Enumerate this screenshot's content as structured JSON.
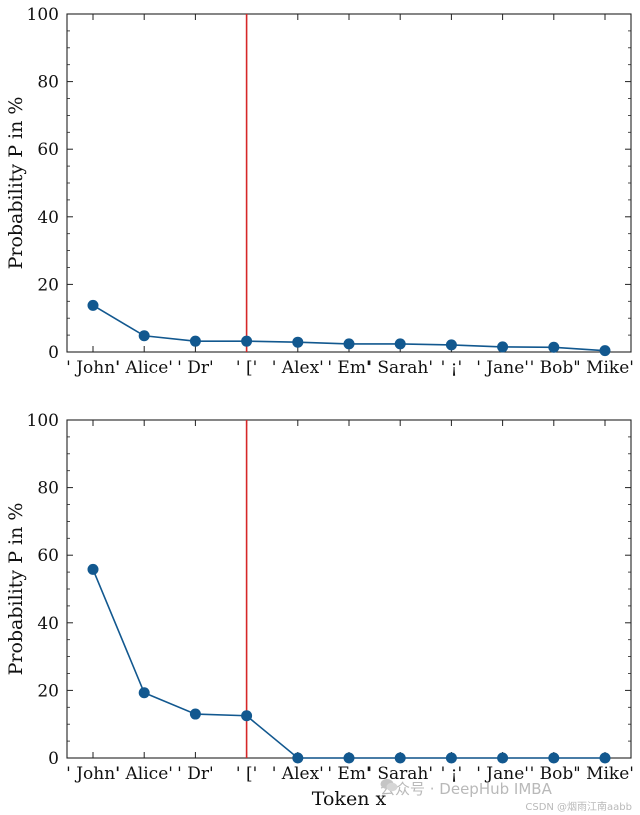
{
  "chart_data": [
    {
      "type": "line",
      "categories": [
        "' John'",
        "' Alice'",
        "' Dr'",
        "' ['",
        "' Alex'",
        "' Em'",
        "' Sarah'",
        "' ¡'",
        "' Jane'",
        "' Bob'",
        "' Mike'"
      ],
      "category_labels": [
        "' John'",
        "' Alice'",
        "' Dr'",
        "' ['",
        "' Alex'",
        "' Em'",
        "' Sarah'",
        "' ¡'",
        "' Jane'",
        "' Bob'",
        "' Mike'"
      ],
      "values": [
        13.8,
        4.8,
        3.2,
        3.2,
        2.9,
        2.4,
        2.4,
        2.1,
        1.5,
        1.4,
        0.4
      ],
      "ylabel": "Probability P in %",
      "xlabel": "",
      "ylim": [
        0,
        100
      ],
      "yticks": [
        0,
        20,
        40,
        60,
        80,
        100
      ],
      "vline_after_index": 3.0,
      "grid": false,
      "colors": {
        "series": "#12588f",
        "vline": "#d62728",
        "axis": "#222222"
      }
    },
    {
      "type": "line",
      "categories": [
        "' John'",
        "' Alice'",
        "' Dr'",
        "' ['",
        "' Alex'",
        "' Em'",
        "' Sarah'",
        "' ¡'",
        "' Jane'",
        "' Bob'",
        "' Mike'"
      ],
      "category_labels": [
        "' John'",
        "' Alice'",
        "' Dr'",
        "' ['",
        "' Alex'",
        "' Em'",
        "' Sarah'",
        "' ¡'",
        "' Jane'",
        "' Bob'",
        "' Mike'"
      ],
      "values": [
        55.8,
        19.3,
        13.0,
        12.5,
        0,
        0,
        0,
        0,
        0,
        0,
        0
      ],
      "ylabel": "Probability P in %",
      "xlabel": "Token x",
      "ylim": [
        0,
        100
      ],
      "yticks": [
        0,
        20,
        40,
        60,
        80,
        100
      ],
      "vline_after_index": 3.0,
      "grid": false,
      "colors": {
        "series": "#12588f",
        "vline": "#d62728",
        "axis": "#222222"
      }
    }
  ],
  "watermark": {
    "main": "公众号 · DeepHub IMBA",
    "sub": "CSDN @烟雨江南aabb"
  }
}
